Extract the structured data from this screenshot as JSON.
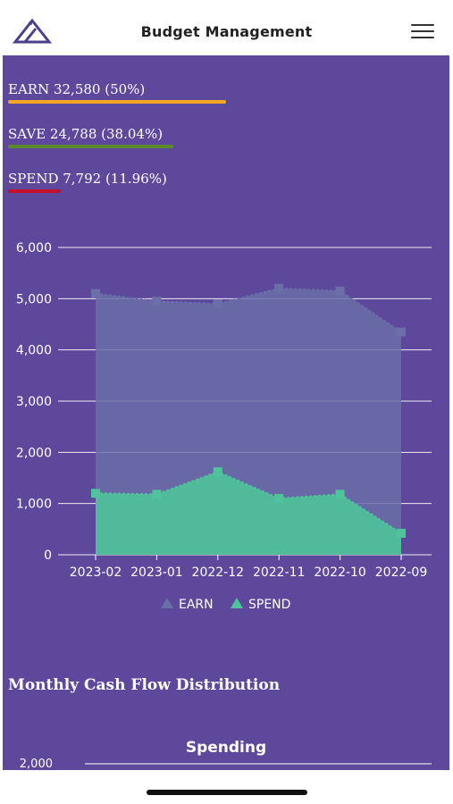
{
  "header": {
    "title": "Budget Management",
    "logo_icon": "triangle-logo-icon",
    "menu_icon": "hamburger-menu-icon"
  },
  "stats": [
    {
      "label": "EARN 32,580 (50%)",
      "color": "#f5a623",
      "fraction": 0.5
    },
    {
      "label": "SAVE 24,788 (38.04%)",
      "color": "#5a8a2a",
      "fraction": 0.38
    },
    {
      "label": "SPEND 7,792 (11.96%)",
      "color": "#c4112b",
      "fraction": 0.12
    }
  ],
  "chart_data": {
    "type": "area",
    "categories": [
      "2023-02",
      "2023-01",
      "2022-12",
      "2022-11",
      "2022-10",
      "2022-09"
    ],
    "series": [
      {
        "name": "EARN",
        "color": "#6a6fa8",
        "values": [
          5100,
          4950,
          4900,
          5200,
          5150,
          4350
        ]
      },
      {
        "name": "SPEND",
        "color": "#4fc39a",
        "values": [
          1200,
          1180,
          1620,
          1100,
          1180,
          420
        ]
      }
    ],
    "yticks": [
      "6,000",
      "5,000",
      "4,000",
      "3,000",
      "2,000",
      "1,000",
      "0"
    ],
    "ylim": [
      0,
      6000
    ],
    "grid": true,
    "legend": "bottom"
  },
  "section_title": "Monthly Cash Flow Distribution",
  "spending_chart": {
    "title": "Spending",
    "top_tick": "2,000"
  }
}
